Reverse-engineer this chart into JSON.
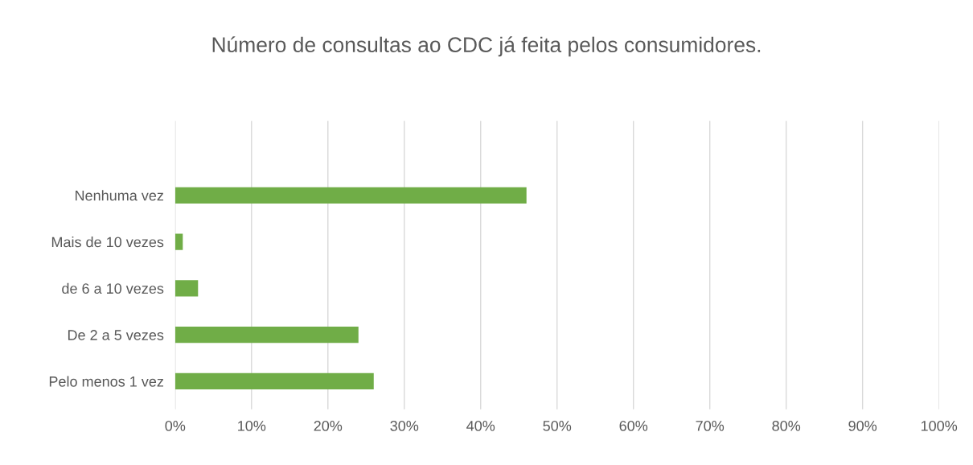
{
  "chart_data": {
    "type": "bar",
    "orientation": "horizontal",
    "title": "Número de consultas ao CDC já feita pelos consumidores.",
    "categories": [
      "Nenhuma vez",
      "Mais de 10 vezes",
      "de 6 a 10 vezes",
      "De 2 a 5 vezes",
      "Pelo menos 1 vez"
    ],
    "values": [
      46,
      1,
      3,
      24,
      26
    ],
    "color": "#70ad47",
    "xlim": [
      0,
      100
    ],
    "xticks": [
      {
        "value": 0,
        "label": "0%"
      },
      {
        "value": 10,
        "label": "10%"
      },
      {
        "value": 20,
        "label": "20%"
      },
      {
        "value": 30,
        "label": "30%"
      },
      {
        "value": 40,
        "label": "40%"
      },
      {
        "value": 50,
        "label": "50%"
      },
      {
        "value": 60,
        "label": "60%"
      },
      {
        "value": 70,
        "label": "70%"
      },
      {
        "value": 80,
        "label": "80%"
      },
      {
        "value": 90,
        "label": "90%"
      },
      {
        "value": 100,
        "label": "100%"
      }
    ],
    "grid": "x"
  }
}
